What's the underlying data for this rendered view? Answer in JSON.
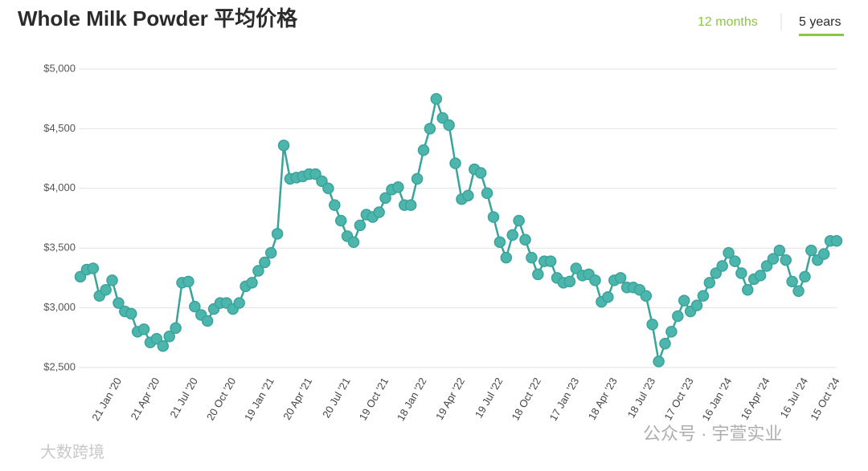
{
  "header": {
    "title": "Whole Milk Powder 平均价格",
    "tabs": [
      "12 months",
      "5 years"
    ]
  },
  "chart_data": {
    "type": "line",
    "categories": [
      null,
      null,
      null,
      null,
      null,
      null,
      "21 Jan '20",
      null,
      null,
      null,
      null,
      null,
      "21 Apr '20",
      null,
      null,
      null,
      null,
      null,
      "21 Jul '20",
      null,
      null,
      null,
      null,
      null,
      "20 Oct '20",
      null,
      null,
      null,
      null,
      null,
      "19 Jan '21",
      null,
      null,
      null,
      null,
      null,
      "20 Apr '21",
      null,
      null,
      null,
      null,
      null,
      "20 Jul '21",
      null,
      null,
      null,
      null,
      null,
      "19 Oct '21",
      null,
      null,
      null,
      null,
      null,
      "18 Jan '22",
      null,
      null,
      null,
      null,
      null,
      "19 Apr '22",
      null,
      null,
      null,
      null,
      null,
      "19 Jul '22",
      null,
      null,
      null,
      null,
      null,
      "18 Oct '22",
      null,
      null,
      null,
      null,
      null,
      "17 Jan '23",
      null,
      null,
      null,
      null,
      null,
      "18 Apr '23",
      null,
      null,
      null,
      null,
      null,
      "18 Jul '23",
      null,
      null,
      null,
      null,
      null,
      "17 Oct '23",
      null,
      null,
      null,
      null,
      null,
      "16 Jan '24",
      null,
      null,
      null,
      null,
      null,
      "16 Apr '24",
      null,
      null,
      null,
      null,
      null,
      "16 Jul '24",
      null,
      null,
      null,
      null,
      "15 Oct '24"
    ],
    "series": [
      {
        "name": "Whole Milk Powder",
        "color": "#3aa39b",
        "values": [
          3260,
          3320,
          3330,
          3100,
          3150,
          3230,
          3040,
          2970,
          2950,
          2800,
          2820,
          2710,
          2740,
          2680,
          2760,
          2830,
          3210,
          3220,
          3010,
          2940,
          2890,
          2990,
          3040,
          3040,
          2990,
          3040,
          3180,
          3210,
          3310,
          3380,
          3460,
          3620,
          4360,
          4080,
          4090,
          4100,
          4120,
          4120,
          4060,
          4000,
          3860,
          3730,
          3600,
          3550,
          3690,
          3780,
          3760,
          3800,
          3920,
          3990,
          4010,
          3860,
          3860,
          4080,
          4320,
          4500,
          4750,
          4590,
          4530,
          4210,
          3910,
          3940,
          4160,
          4130,
          3960,
          3760,
          3550,
          3420,
          3610,
          3730,
          3570,
          3420,
          3280,
          3390,
          3390,
          3250,
          3210,
          3220,
          3330,
          3270,
          3280,
          3230,
          3050,
          3090,
          3230,
          3250,
          3170,
          3170,
          3150,
          3100,
          2860,
          2550,
          2700,
          2800,
          2930,
          3060,
          2970,
          3020,
          3100,
          3210,
          3290,
          3350,
          3460,
          3390,
          3290,
          3150,
          3240,
          3270,
          3350,
          3410,
          3480,
          3400,
          3220,
          3140,
          3260,
          3480,
          3400,
          3450,
          3560,
          3560
        ]
      }
    ],
    "ylim": [
      2500,
      5000
    ],
    "yticks": [
      {
        "value": 2500,
        "label": "$2,500"
      },
      {
        "value": 3000,
        "label": "$3,000"
      },
      {
        "value": 3500,
        "label": "$3,500"
      },
      {
        "value": 4000,
        "label": "$4,000"
      },
      {
        "value": 4500,
        "label": "$4,500"
      },
      {
        "value": 5000,
        "label": "$5,000"
      }
    ],
    "grid": true
  },
  "watermarks": [
    "公众号 · 宇萱实业",
    "大数跨境"
  ]
}
